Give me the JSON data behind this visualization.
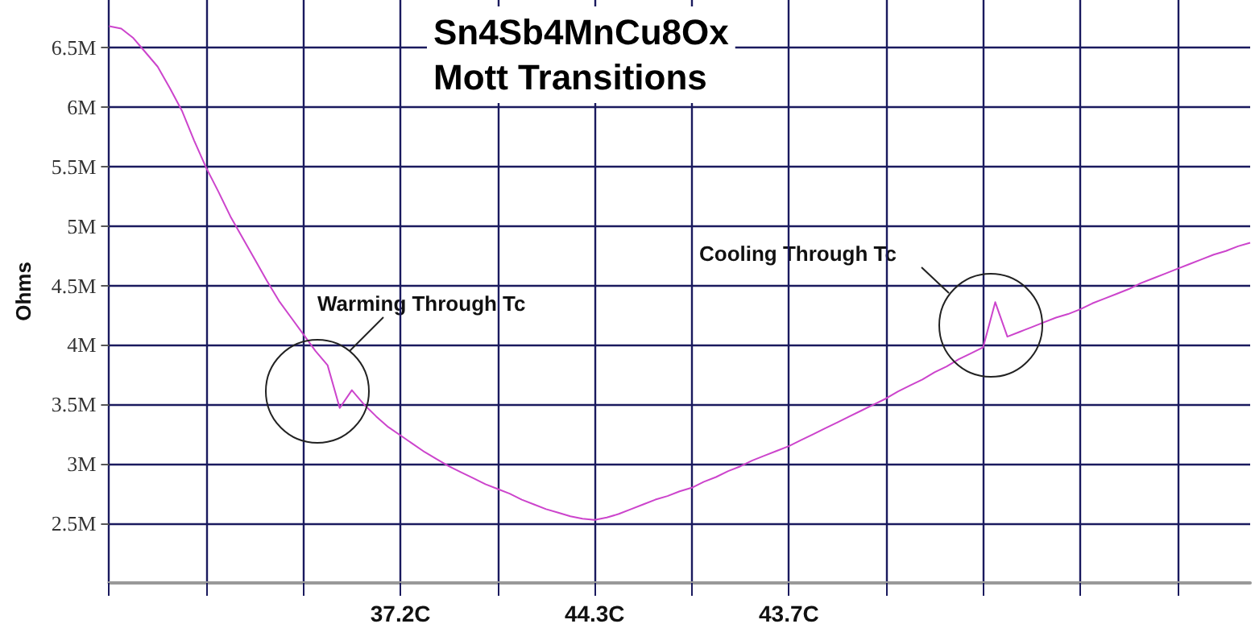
{
  "chart_data": {
    "type": "line",
    "title": "Sn4Sb4MnCu8Ox\nMott Transitions",
    "ylabel": "Ohms",
    "categories": [
      null,
      null,
      null,
      null,
      null,
      null,
      null,
      null,
      null,
      null,
      null,
      null,
      null,
      null,
      null,
      null,
      null,
      null,
      null,
      null,
      null,
      null,
      null,
      null,
      "37.2C",
      null,
      null,
      null,
      null,
      null,
      null,
      null,
      null,
      null,
      null,
      null,
      null,
      null,
      null,
      null,
      "44.3C",
      null,
      null,
      null,
      null,
      null,
      null,
      null,
      null,
      null,
      null,
      null,
      null,
      null,
      null,
      null,
      "43.7C",
      null,
      null,
      null,
      null,
      null,
      null,
      null,
      null,
      null,
      null,
      null,
      null,
      null,
      null,
      null,
      null,
      null,
      null,
      null,
      null,
      null,
      null,
      null,
      null,
      null,
      null,
      null,
      null,
      null,
      null,
      null,
      null,
      null,
      null,
      null,
      null,
      null,
      null
    ],
    "series": [
      {
        "color": "#cc44cc",
        "values": [
          6.68,
          6.66,
          6.58,
          6.46,
          6.34,
          6.16,
          5.97,
          5.72,
          5.49,
          5.29,
          5.08,
          4.9,
          4.72,
          4.54,
          4.37,
          4.23,
          4.09,
          3.95,
          3.83,
          3.47,
          3.62,
          3.5,
          3.4,
          3.31,
          3.24,
          3.17,
          3.1,
          3.04,
          2.98,
          2.93,
          2.88,
          2.83,
          2.79,
          2.75,
          2.7,
          2.66,
          2.62,
          2.59,
          2.56,
          2.54,
          2.53,
          2.55,
          2.58,
          2.62,
          2.66,
          2.7,
          2.73,
          2.77,
          2.8,
          2.85,
          2.89,
          2.94,
          2.98,
          3.03,
          3.07,
          3.11,
          3.15,
          3.2,
          3.25,
          3.3,
          3.35,
          3.4,
          3.45,
          3.5,
          3.55,
          3.61,
          3.66,
          3.71,
          3.77,
          3.82,
          3.88,
          3.93,
          3.98,
          4.36,
          4.07,
          4.11,
          4.15,
          4.19,
          4.23,
          4.26,
          4.3,
          4.35,
          4.39,
          4.43,
          4.47,
          4.52,
          4.56,
          4.6,
          4.64,
          4.68,
          4.72,
          4.76,
          4.79,
          4.83,
          4.86
        ]
      }
    ],
    "ylim": [
      2,
      6.9
    ],
    "yticks": [
      {
        "value": 2.5,
        "label": "2.5M"
      },
      {
        "value": 3,
        "label": "3M"
      },
      {
        "value": 3.5,
        "label": "3.5M"
      },
      {
        "value": 4,
        "label": "4M"
      },
      {
        "value": 4.5,
        "label": "4.5M"
      },
      {
        "value": 5,
        "label": "5M"
      },
      {
        "value": 5.5,
        "label": "5.5M"
      },
      {
        "value": 6,
        "label": "6M"
      },
      {
        "value": 6.5,
        "label": "6.5M"
      }
    ],
    "grid": true,
    "annotations": [
      "Warming Through Tc",
      "Cooling Through Tc"
    ]
  }
}
